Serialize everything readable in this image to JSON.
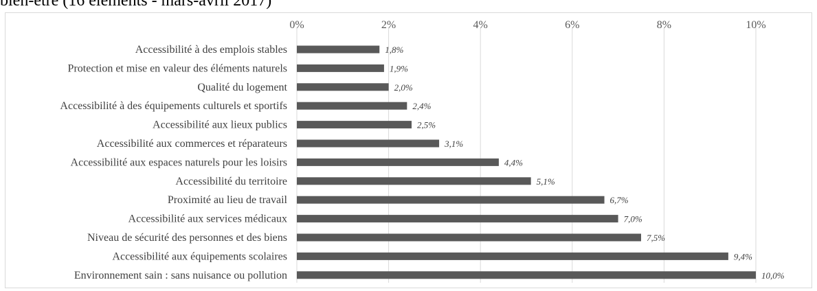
{
  "chart_data": {
    "type": "bar",
    "orientation": "horizontal",
    "title": "bien-être (16 éléments - mars-avril 2017)",
    "categories": [
      "Accessibilité à des emplois stables",
      "Protection et mise en valeur des éléments naturels",
      "Qualité du logement",
      "Accessibilité à des équipements culturels et sportifs",
      "Accessibilité aux lieux publics",
      "Accessibilité aux commerces et réparateurs",
      "Accessibilité aux espaces naturels pour les loisirs",
      "Accessibilité du territoire",
      "Proximité au lieu de travail",
      "Accessibilité aux services médicaux",
      "Niveau de sécurité des personnes et des biens",
      "Accessibilité aux équipements scolaires",
      "Environnement sain : sans nuisance ou pollution"
    ],
    "values": [
      1.8,
      1.9,
      2.0,
      2.4,
      2.5,
      3.1,
      4.4,
      5.1,
      6.7,
      7.0,
      7.5,
      9.4,
      10.0
    ],
    "data_labels": [
      "1,8%",
      "1,9%",
      "2,0%",
      "2,4%",
      "2,5%",
      "3,1%",
      "4,4%",
      "5,1%",
      "6,7%",
      "7,0%",
      "7,5%",
      "9,4%",
      "10,0%"
    ],
    "xticks": [
      "0%",
      "2%",
      "4%",
      "6%",
      "8%",
      "10%"
    ],
    "xlim": [
      0,
      10
    ],
    "xlabel": "",
    "ylabel": "",
    "grid": true,
    "bar_color": "#595959",
    "grid_color": "#d9d9d9"
  }
}
